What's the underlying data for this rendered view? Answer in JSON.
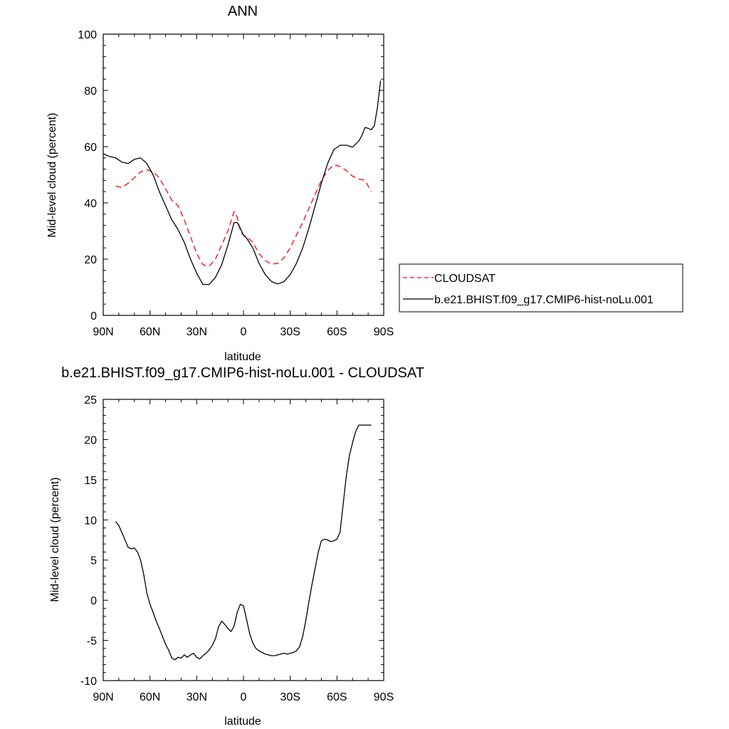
{
  "chart_data": [
    {
      "type": "line",
      "title": "ANN",
      "xlabel": "latitude",
      "ylabel": "Mid-level cloud (percent)",
      "xlim": [
        90,
        -90
      ],
      "ylim": [
        0,
        100
      ],
      "x_ticks": [
        90,
        60,
        30,
        0,
        -30,
        -60,
        -90
      ],
      "x_tick_labels": [
        "90N",
        "60N",
        "30N",
        "0",
        "30S",
        "60S",
        "90S"
      ],
      "y_ticks": [
        0,
        20,
        40,
        60,
        80,
        100
      ],
      "y_tick_labels": [
        "0",
        "20",
        "40",
        "60",
        "80",
        "100"
      ],
      "legend": "outside-right",
      "series": [
        {
          "name": "CLOUDSAT",
          "color": "#ff0000",
          "dash": "dashed",
          "x": [
            82,
            78,
            74,
            70,
            66,
            62,
            58,
            54,
            50,
            46,
            42,
            38,
            34,
            30,
            26,
            22,
            18,
            14,
            10,
            6,
            4,
            2,
            0,
            -2,
            -6,
            -10,
            -14,
            -18,
            -22,
            -26,
            -30,
            -34,
            -38,
            -42,
            -46,
            -50,
            -54,
            -58,
            -62,
            -66,
            -70,
            -74,
            -78,
            -82
          ],
          "y": [
            46,
            45.5,
            47,
            49,
            51,
            51.8,
            51,
            49,
            45,
            41,
            39,
            34,
            28,
            22,
            18,
            17.5,
            20,
            25,
            30,
            37,
            35,
            30,
            28.5,
            28,
            26,
            22,
            19.5,
            18.2,
            18.5,
            20.5,
            24,
            28.5,
            33,
            38,
            43,
            48,
            51.5,
            53.5,
            53,
            51.5,
            49.5,
            48.5,
            48,
            44
          ]
        },
        {
          "name": "b.e21.BHIST.f09_g17.CMIP6-hist-noLu.001",
          "color": "#000000",
          "dash": "solid",
          "x": [
            90,
            86,
            82,
            78,
            74,
            70,
            66,
            62,
            58,
            54,
            50,
            46,
            42,
            38,
            34,
            30,
            26,
            22,
            18,
            14,
            10,
            6,
            4,
            2,
            0,
            -2,
            -6,
            -10,
            -14,
            -18,
            -22,
            -26,
            -30,
            -34,
            -38,
            -42,
            -46,
            -50,
            -54,
            -58,
            -62,
            -66,
            -70,
            -74,
            -76,
            -78,
            -80,
            -82,
            -84,
            -86,
            -88
          ],
          "y": [
            57.5,
            56.5,
            56,
            54.5,
            54,
            55.5,
            56,
            54,
            50,
            44,
            39,
            34,
            30.5,
            26,
            20,
            15,
            11,
            11,
            13.5,
            18,
            25,
            33,
            33,
            31,
            28.5,
            27.5,
            24,
            18.5,
            14.5,
            12,
            11.2,
            12,
            14.5,
            18.5,
            24,
            31,
            39,
            47,
            54,
            59,
            60.5,
            60.5,
            59.8,
            62,
            64,
            66.8,
            66.5,
            66,
            67.5,
            74,
            83.5
          ]
        }
      ]
    },
    {
      "type": "line",
      "title": "b.e21.BHIST.f09_g17.CMIP6-hist-noLu.001 - CLOUDSAT",
      "xlabel": "latitude",
      "ylabel": "Mid-level cloud (percent)",
      "xlim": [
        90,
        -90
      ],
      "ylim": [
        -10,
        25
      ],
      "x_ticks": [
        90,
        60,
        30,
        0,
        -30,
        -60,
        -90
      ],
      "x_tick_labels": [
        "90N",
        "60N",
        "30N",
        "0",
        "30S",
        "60S",
        "90S"
      ],
      "y_ticks": [
        -10,
        -5,
        0,
        5,
        10,
        15,
        20,
        25
      ],
      "y_tick_labels": [
        "-10",
        "-5",
        "0",
        "5",
        "10",
        "15",
        "20",
        "25"
      ],
      "series": [
        {
          "color": "#000000",
          "dash": "solid",
          "x": [
            82,
            80,
            78,
            76,
            74,
            72,
            70,
            68,
            66,
            64,
            62,
            60,
            58,
            56,
            54,
            52,
            50,
            48,
            46,
            44,
            42,
            40,
            38,
            36,
            34,
            32,
            30,
            28,
            26,
            24,
            22,
            20,
            18,
            16,
            14,
            12,
            10,
            8,
            6,
            4,
            2,
            0,
            -2,
            -4,
            -6,
            -8,
            -10,
            -12,
            -14,
            -16,
            -18,
            -20,
            -22,
            -24,
            -26,
            -28,
            -30,
            -32,
            -34,
            -36,
            -38,
            -40,
            -42,
            -44,
            -46,
            -48,
            -50,
            -52,
            -54,
            -56,
            -58,
            -60,
            -62,
            -64,
            -66,
            -68,
            -70,
            -72,
            -74,
            -76,
            -78,
            -80,
            -82
          ],
          "y": [
            9.8,
            9.3,
            8.4,
            7.5,
            6.6,
            6.4,
            6.5,
            6.0,
            5.0,
            3.2,
            0.9,
            -0.5,
            -1.5,
            -2.6,
            -3.5,
            -4.5,
            -5.5,
            -6.2,
            -7.2,
            -7.4,
            -7.1,
            -7.2,
            -6.8,
            -7.1,
            -6.8,
            -6.6,
            -7.1,
            -7.3,
            -6.9,
            -6.6,
            -6.2,
            -5.6,
            -4.8,
            -3.3,
            -2.6,
            -3.0,
            -3.5,
            -3.9,
            -3.2,
            -1.5,
            -0.5,
            -0.7,
            -2.4,
            -4.2,
            -5.3,
            -6.0,
            -6.3,
            -6.5,
            -6.7,
            -6.8,
            -6.9,
            -6.9,
            -6.8,
            -6.7,
            -6.6,
            -6.7,
            -6.6,
            -6.5,
            -6.3,
            -5.8,
            -4.5,
            -2.5,
            -0.2,
            2.0,
            4.0,
            6.0,
            7.4,
            7.6,
            7.5,
            7.3,
            7.4,
            7.6,
            8.5,
            12.0,
            15.5,
            18.0,
            19.6,
            21.0,
            21.8,
            21.8,
            21.8,
            21.8,
            21.8
          ]
        }
      ]
    }
  ]
}
